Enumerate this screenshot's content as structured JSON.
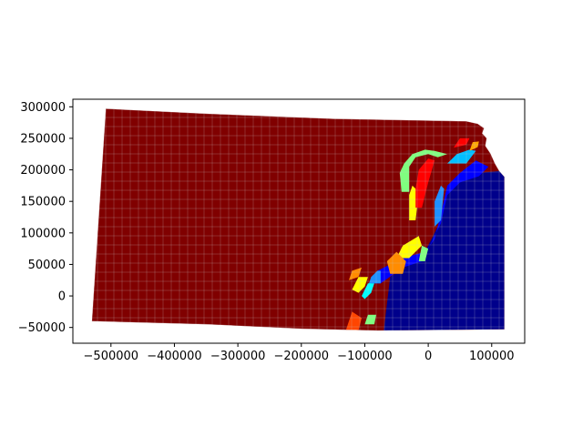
{
  "chart_data": {
    "type": "choropleth-map",
    "colormap": "jet",
    "grid": false,
    "x_axis": {
      "lim": [
        -560000,
        152000
      ],
      "ticks": [
        {
          "value": -500000,
          "label": "−500000"
        },
        {
          "value": -400000,
          "label": "−400000"
        },
        {
          "value": -300000,
          "label": "−300000"
        },
        {
          "value": -200000,
          "label": "−200000"
        },
        {
          "value": -100000,
          "label": "−100000"
        },
        {
          "value": 0,
          "label": "0"
        },
        {
          "value": 100000,
          "label": "100000"
        }
      ]
    },
    "y_axis": {
      "lim": [
        -75000,
        312000
      ],
      "ticks": [
        {
          "value": 300000,
          "label": "300000"
        },
        {
          "value": 250000,
          "label": "250000"
        },
        {
          "value": 200000,
          "label": "200000"
        },
        {
          "value": 150000,
          "label": "150000"
        },
        {
          "value": 100000,
          "label": "100000"
        },
        {
          "value": 50000,
          "label": "50000"
        },
        {
          "value": 0,
          "label": "0"
        },
        {
          "value": -50000,
          "label": "−50000"
        }
      ]
    },
    "state_outline": [
      [
        -508000,
        297000
      ],
      [
        -350000,
        289000
      ],
      [
        -150000,
        281000
      ],
      [
        60000,
        277000
      ],
      [
        78000,
        273000
      ],
      [
        88000,
        266000
      ],
      [
        85000,
        258000
      ],
      [
        92000,
        250000
      ],
      [
        90000,
        238000
      ],
      [
        98000,
        226000
      ],
      [
        105000,
        210000
      ],
      [
        112000,
        198000
      ],
      [
        120000,
        189000
      ],
      [
        120000,
        -53000
      ],
      [
        -80000,
        -55000
      ],
      [
        -200000,
        -52000
      ],
      [
        -350000,
        -45000
      ],
      [
        -530000,
        -40000
      ]
    ],
    "regions": [
      {
        "color": "#00008b",
        "polygon": [
          [
            -70000,
            -55000
          ],
          [
            -60000,
            30000
          ],
          [
            -30000,
            50000
          ],
          [
            -10000,
            60000
          ],
          [
            20000,
            120000
          ],
          [
            30000,
            165000
          ],
          [
            50000,
            185000
          ],
          [
            80000,
            195000
          ],
          [
            112000,
            198000
          ],
          [
            120000,
            189000
          ],
          [
            120000,
            -53000
          ],
          [
            -75000,
            -55000
          ]
        ]
      },
      {
        "color": "#0000ff",
        "polygon": [
          [
            -90000,
            20000
          ],
          [
            -80000,
            40000
          ],
          [
            -40000,
            60000
          ],
          [
            -5000,
            70000
          ],
          [
            10000,
            90000
          ],
          [
            20000,
            130000
          ],
          [
            30000,
            175000
          ],
          [
            50000,
            195000
          ],
          [
            75000,
            215000
          ],
          [
            95000,
            205000
          ],
          [
            80000,
            190000
          ],
          [
            50000,
            180000
          ],
          [
            30000,
            160000
          ],
          [
            20000,
            115000
          ],
          [
            -10000,
            55000
          ],
          [
            -40000,
            45000
          ],
          [
            -75000,
            20000
          ]
        ]
      },
      {
        "color": "#1e90ff",
        "polygon": [
          [
            -100000,
            0
          ],
          [
            -90000,
            20000
          ],
          [
            -75000,
            20000
          ],
          [
            -75000,
            40000
          ],
          [
            -80000,
            40000
          ],
          [
            -90000,
            30000
          ]
        ]
      },
      {
        "color": "#00bfff",
        "polygon": [
          [
            30000,
            210000
          ],
          [
            60000,
            210000
          ],
          [
            75000,
            230000
          ],
          [
            65000,
            232000
          ],
          [
            45000,
            225000
          ]
        ]
      },
      {
        "color": "#1e90ff",
        "polygon": [
          [
            10000,
            110000
          ],
          [
            20000,
            120000
          ],
          [
            25000,
            170000
          ],
          [
            20000,
            175000
          ],
          [
            10000,
            150000
          ]
        ]
      },
      {
        "color": "#00ffff",
        "polygon": [
          [
            -100000,
            -5000
          ],
          [
            -90000,
            5000
          ],
          [
            -85000,
            20000
          ],
          [
            -95000,
            20000
          ],
          [
            -105000,
            0
          ]
        ]
      },
      {
        "color": "#7fff7f",
        "polygon": [
          [
            -100000,
            -45000
          ],
          [
            -85000,
            -45000
          ],
          [
            -82000,
            -30000
          ],
          [
            -95000,
            -30000
          ]
        ]
      },
      {
        "color": "#7fff7f",
        "polygon": [
          [
            -42000,
            165000
          ],
          [
            -30000,
            165000
          ],
          [
            -30000,
            205000
          ],
          [
            -20000,
            220000
          ],
          [
            0,
            225000
          ],
          [
            15000,
            220000
          ],
          [
            30000,
            225000
          ],
          [
            10000,
            230000
          ],
          [
            -5000,
            232000
          ],
          [
            -25000,
            225000
          ],
          [
            -38000,
            210000
          ],
          [
            -45000,
            195000
          ]
        ]
      },
      {
        "color": "#7fff7f",
        "polygon": [
          [
            -15000,
            55000
          ],
          [
            -5000,
            55000
          ],
          [
            0,
            75000
          ],
          [
            -10000,
            80000
          ]
        ]
      },
      {
        "color": "#ffff00",
        "polygon": [
          [
            -30000,
            120000
          ],
          [
            -20000,
            120000
          ],
          [
            -15000,
            165000
          ],
          [
            -25000,
            175000
          ],
          [
            -30000,
            160000
          ]
        ]
      },
      {
        "color": "#ffff00",
        "polygon": [
          [
            -110000,
            5000
          ],
          [
            -100000,
            15000
          ],
          [
            -95000,
            30000
          ],
          [
            -110000,
            30000
          ],
          [
            -120000,
            10000
          ]
        ]
      },
      {
        "color": "#ffff00",
        "polygon": [
          [
            -50000,
            60000
          ],
          [
            -30000,
            60000
          ],
          [
            -10000,
            80000
          ],
          [
            -15000,
            95000
          ],
          [
            -40000,
            80000
          ]
        ]
      },
      {
        "color": "#ff8c00",
        "polygon": [
          [
            -60000,
            35000
          ],
          [
            -40000,
            35000
          ],
          [
            -35000,
            55000
          ],
          [
            -50000,
            70000
          ],
          [
            -65000,
            55000
          ]
        ]
      },
      {
        "color": "#ff8c00",
        "polygon": [
          [
            -125000,
            25000
          ],
          [
            -110000,
            30000
          ],
          [
            -105000,
            45000
          ],
          [
            -120000,
            40000
          ]
        ]
      },
      {
        "color": "#ff4500",
        "polygon": [
          [
            -130000,
            -55000
          ],
          [
            -110000,
            -55000
          ],
          [
            -105000,
            -35000
          ],
          [
            -120000,
            -25000
          ]
        ]
      },
      {
        "color": "#ff0000",
        "polygon": [
          [
            -20000,
            140000
          ],
          [
            -10000,
            140000
          ],
          [
            0,
            180000
          ],
          [
            10000,
            215000
          ],
          [
            0,
            218000
          ],
          [
            -15000,
            200000
          ],
          [
            -20000,
            170000
          ]
        ]
      },
      {
        "color": "#ff0000",
        "polygon": [
          [
            40000,
            235000
          ],
          [
            60000,
            240000
          ],
          [
            65000,
            250000
          ],
          [
            50000,
            250000
          ]
        ]
      },
      {
        "color": "#ffa500",
        "polygon": [
          [
            65000,
            230000
          ],
          [
            78000,
            236000
          ],
          [
            80000,
            245000
          ],
          [
            70000,
            244000
          ]
        ]
      }
    ]
  }
}
